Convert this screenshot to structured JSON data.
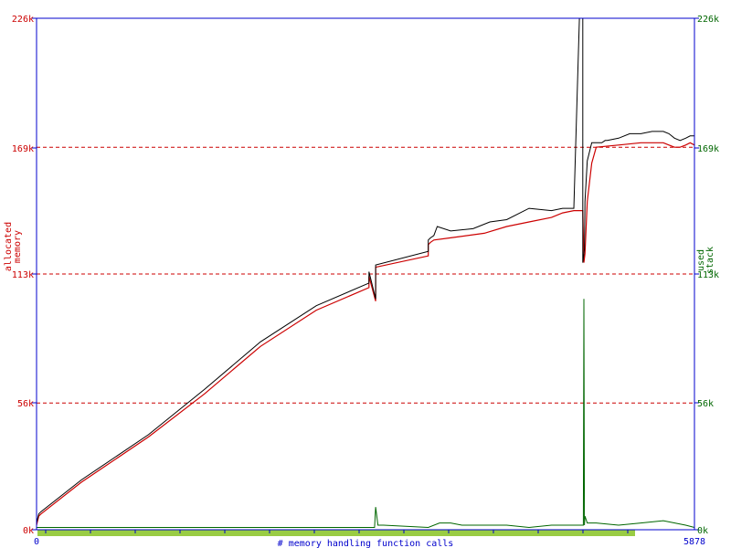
{
  "chart_data": {
    "type": "line",
    "xlabel": "# memory handling function calls",
    "ylabel_left": "allocated memory",
    "ylabel_right": "used stack",
    "x_ticks": [
      "0",
      "5878"
    ],
    "y_ticks_left": [
      "0k",
      "56k",
      "113k",
      "169k",
      "226k"
    ],
    "y_ticks_right": [
      "0k",
      "56k",
      "113k",
      "169k",
      "226k"
    ],
    "xlim": [
      0,
      5878
    ],
    "ylim": [
      0,
      226
    ],
    "y_unit": "k",
    "grid": "dashed horizontal at 56k, 113k, 169k",
    "colors": {
      "axis": "#0000cc",
      "left_axis_text": "#cc0000",
      "right_axis_text": "#006600",
      "grid": "#cc0000",
      "series_total": "#000000",
      "series_allocated": "#cc0000",
      "series_stack": "#006600",
      "bottom_bar": "#99cc44"
    },
    "series": [
      {
        "key": "total",
        "color": "#000000",
        "x": [
          0,
          20,
          40,
          400,
          1000,
          1500,
          2000,
          2500,
          2970,
          2970,
          3030,
          3030,
          3500,
          3500,
          3520,
          3550,
          3580,
          3700,
          3900,
          4050,
          4200,
          4400,
          4600,
          4700,
          4800,
          4850,
          4880,
          4880,
          4890,
          4895,
          4900,
          4920,
          4960,
          5000,
          5050,
          5080,
          5100,
          5200,
          5300,
          5400,
          5500,
          5600,
          5650,
          5700,
          5750,
          5800,
          5840,
          5878
        ],
        "y": [
          3,
          7,
          8,
          22,
          42,
          62,
          83,
          99,
          109,
          114,
          102,
          117,
          123,
          128,
          129,
          130,
          134,
          132,
          133,
          136,
          137,
          142,
          141,
          142,
          142,
          226,
          226,
          118,
          122,
          124,
          145,
          163,
          171,
          171,
          171,
          172,
          172,
          173,
          175,
          175,
          176,
          176,
          175,
          173,
          172,
          173,
          174,
          174
        ]
      },
      {
        "key": "allocated",
        "color": "#cc0000",
        "x": [
          0,
          20,
          40,
          400,
          1000,
          1500,
          2000,
          2500,
          2970,
          2970,
          3030,
          3030,
          3500,
          3500,
          3520,
          3550,
          3700,
          4000,
          4200,
          4400,
          4600,
          4700,
          4800,
          4880,
          4890,
          4900,
          4920,
          4960,
          5000,
          5200,
          5400,
          5600,
          5650,
          5700,
          5750,
          5800,
          5840,
          5878
        ],
        "y": [
          2,
          6,
          7,
          21,
          41,
          60,
          81,
          97,
          107,
          112,
          101,
          116,
          121,
          126,
          127,
          128,
          129,
          131,
          134,
          136,
          138,
          140,
          141,
          141,
          118,
          122,
          145,
          162,
          169,
          170,
          171,
          171,
          170,
          169,
          169,
          170,
          171,
          170
        ]
      },
      {
        "key": "stack",
        "color": "#006600",
        "x": [
          0,
          2500,
          3020,
          3030,
          3050,
          3100,
          3500,
          3600,
          3700,
          3800,
          3900,
          4000,
          4200,
          4400,
          4600,
          4800,
          4885,
          4890,
          4895,
          4900,
          4920,
          5000,
          5200,
          5400,
          5600,
          5800,
          5878
        ],
        "y": [
          1,
          1,
          1,
          10,
          2,
          2,
          1,
          3,
          3,
          2,
          2,
          2,
          2,
          1,
          2,
          2,
          2,
          102,
          2,
          6,
          3,
          3,
          2,
          3,
          4,
          2,
          1
        ]
      }
    ]
  }
}
